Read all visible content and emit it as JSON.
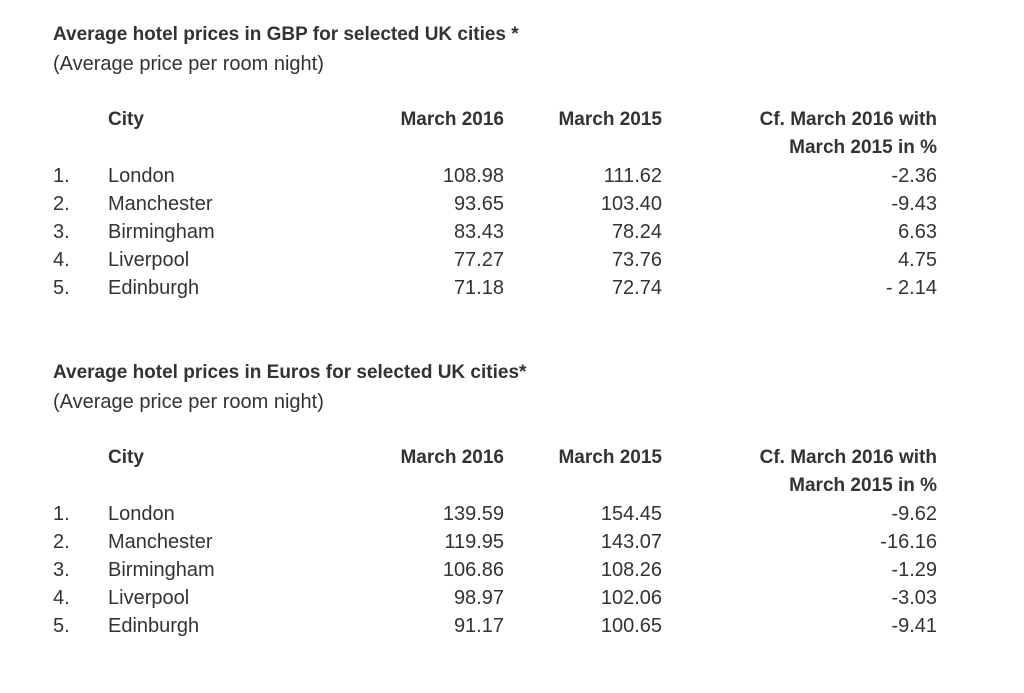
{
  "tables": [
    {
      "title": "Average hotel prices in GBP for selected UK cities *",
      "subtitle": "(Average price per room night)",
      "header": [
        "City",
        "March 2016",
        "March 2015",
        "Cf. March 2016 with March 2015 in %"
      ],
      "rows": [
        [
          "1.",
          "London",
          "108.98",
          "111.62",
          "-2.36"
        ],
        [
          "2.",
          "Manchester",
          "93.65",
          "103.40",
          "-9.43"
        ],
        [
          "3.",
          "Birmingham",
          "83.43",
          "78.24",
          "6.63"
        ],
        [
          "4.",
          "Liverpool",
          "77.27",
          "73.76",
          "4.75"
        ],
        [
          "5.",
          "Edinburgh",
          "71.18",
          "72.74",
          "- 2.14"
        ]
      ]
    },
    {
      "title": "Average hotel prices in Euros for selected UK cities*",
      "subtitle": "(Average price per room night)",
      "header": [
        "City",
        "March 2016",
        "March 2015",
        "Cf. March 2016 with March 2015 in %"
      ],
      "rows": [
        [
          "1.",
          "London",
          "139.59",
          "154.45",
          "-9.62"
        ],
        [
          "2.",
          "Manchester",
          "119.95",
          "143.07",
          "-16.16"
        ],
        [
          "3.",
          "Birmingham",
          "106.86",
          "108.26",
          "-1.29"
        ],
        [
          "4.",
          "Liverpool",
          "98.97",
          "102.06",
          "-3.03"
        ],
        [
          "5.",
          "Edinburgh",
          "91.17",
          "100.65",
          "-9.41"
        ]
      ]
    }
  ]
}
